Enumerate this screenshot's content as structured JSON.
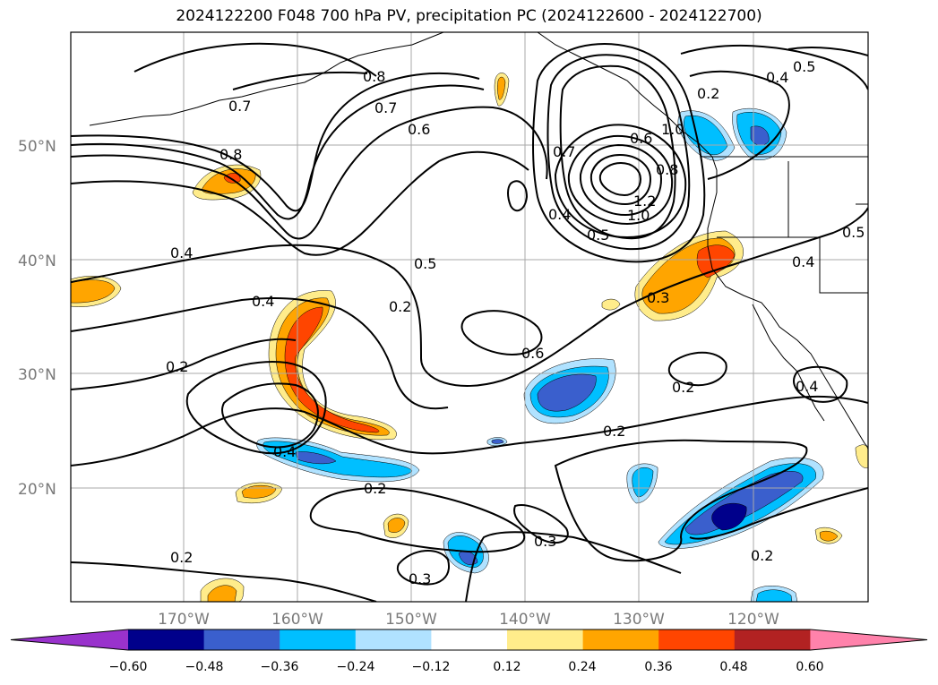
{
  "title": "2024122200 F048 700 hPa PV, precipitation PC (2024122600 - 2024122700)",
  "lat_labels": [
    "50°N",
    "40°N",
    "30°N",
    "20°N"
  ],
  "lon_labels": [
    "170°W",
    "160°W",
    "150°W",
    "140°W",
    "130°W",
    "120°W"
  ],
  "contour_labels": [
    "0.8",
    "0.7",
    "0.7",
    "0.6",
    "0.8",
    "0.4",
    "0.4",
    "0.2",
    "0.5",
    "0.2",
    "0.4",
    "0.2",
    "0.6",
    "0.3",
    "0.2",
    "0.2",
    "0.3",
    "0.3",
    "0.2",
    "0.5",
    "0.4",
    "0.4",
    "0.2",
    "0.7",
    "1.2",
    "1.0",
    "0.4",
    "0.5",
    "0.6",
    "0.8",
    "1.0",
    "0.5",
    "0.4",
    "0.2"
  ],
  "colorbar": {
    "ticks": [
      "−0.60",
      "−0.48",
      "−0.36",
      "−0.24",
      "−0.12",
      "0.12",
      "0.24",
      "0.36",
      "0.48",
      "0.60"
    ],
    "colors": [
      "#9932cc",
      "#00008b",
      "#3a5fcd",
      "#00bfff",
      "#b0e2ff",
      "#ffffff",
      "#ffec8b",
      "#ffa500",
      "#ff4500",
      "#b22222",
      "#ff82ab"
    ]
  },
  "shading_colors": {
    "light_orange": "#ffec8b",
    "orange": "#ffa500",
    "red_orange": "#ff4500",
    "light_blue": "#b0e2ff",
    "sky_blue": "#00bfff",
    "royal_blue": "#3a5fcd",
    "navy": "#00008b"
  }
}
